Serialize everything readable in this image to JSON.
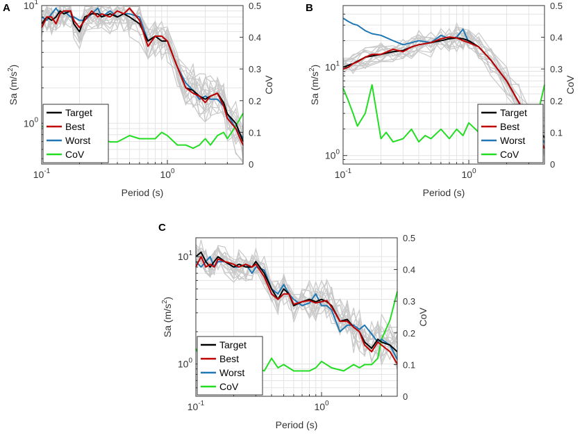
{
  "figure": {
    "x_label": "Period (s)",
    "y_label_left": "Sa (m/s",
    "y_label_left_sup": "2",
    "y_label_left_end": ")",
    "y_label_right": "CoV",
    "x_ticks": [
      {
        "base": "10",
        "exp": "-1",
        "value": 0.1
      },
      {
        "base": "10",
        "exp": "0",
        "value": 1
      }
    ],
    "right_ticks": [
      "0",
      "0.1",
      "0.2",
      "0.3",
      "0.4",
      "0.5"
    ],
    "legend": [
      {
        "label": "Target",
        "color": "#000000"
      },
      {
        "label": "Best",
        "color": "#c00000"
      },
      {
        "label": "Worst",
        "color": "#1f77b4"
      },
      {
        "label": "CoV",
        "color": "#22dd22"
      }
    ],
    "colors": {
      "grid": "#e3e3e3",
      "ensemble": "#c8c8c8",
      "axis": "#333333",
      "text": "#333333"
    }
  },
  "chart_data": [
    {
      "panel": "A",
      "type": "line",
      "xscale": "log",
      "xlim": [
        0.1,
        4.0
      ],
      "yscale": "log",
      "ylim": [
        0.45,
        10.0
      ],
      "y_ticks": [
        {
          "base": "10",
          "exp": "0",
          "value": 1
        },
        {
          "base": "10",
          "exp": "1",
          "value": 10
        }
      ],
      "right_ylim": [
        0,
        0.5
      ],
      "legend_position": "lower-left",
      "series": [
        {
          "name": "Target",
          "x": [
            0.1,
            0.11,
            0.12,
            0.13,
            0.14,
            0.15,
            0.17,
            0.18,
            0.2,
            0.22,
            0.25,
            0.28,
            0.3,
            0.35,
            0.4,
            0.45,
            0.5,
            0.6,
            0.7,
            0.8,
            0.9,
            1.0,
            1.2,
            1.4,
            1.6,
            1.8,
            2.0,
            2.2,
            2.5,
            2.8,
            3.0,
            3.5,
            4.0
          ],
          "values": [
            7,
            8,
            7.5,
            8,
            9,
            8.5,
            9,
            7,
            6,
            8,
            8.5,
            8.5,
            8,
            8.5,
            8,
            8.5,
            8,
            7,
            5,
            5.5,
            5,
            5,
            3,
            2,
            1.9,
            1.7,
            1.6,
            1.7,
            1.8,
            1.5,
            1.2,
            1.0,
            0.7
          ]
        },
        {
          "name": "Best",
          "x": [
            0.1,
            0.11,
            0.12,
            0.13,
            0.14,
            0.15,
            0.17,
            0.18,
            0.2,
            0.22,
            0.25,
            0.28,
            0.3,
            0.35,
            0.4,
            0.45,
            0.5,
            0.6,
            0.7,
            0.8,
            0.9,
            1.0,
            1.2,
            1.4,
            1.6,
            1.8,
            2.0,
            2.2,
            2.5,
            2.8,
            3.0,
            3.5,
            4.0
          ],
          "values": [
            6.5,
            8,
            8,
            7,
            8.5,
            9,
            9,
            7.5,
            6.5,
            7.5,
            9,
            8,
            8.5,
            8,
            9,
            8.5,
            9.5,
            7.5,
            4.5,
            5.5,
            5.5,
            5,
            3,
            2,
            1.8,
            1.7,
            1.5,
            1.7,
            1.8,
            1.4,
            1.1,
            0.9,
            0.65
          ]
        },
        {
          "name": "Worst",
          "x": [
            0.1,
            0.11,
            0.12,
            0.13,
            0.14,
            0.15,
            0.17,
            0.18,
            0.2,
            0.22,
            0.25,
            0.28,
            0.3,
            0.35,
            0.4,
            0.45,
            0.5,
            0.6,
            0.7,
            0.8,
            0.9,
            1.0,
            1.2,
            1.4,
            1.6,
            1.8,
            2.0,
            2.2,
            2.5,
            2.8,
            3.0,
            3.5,
            4.0
          ],
          "values": [
            8,
            7.5,
            8.5,
            9.5,
            8.5,
            9,
            8,
            8,
            7.5,
            7.5,
            8.5,
            9.5,
            8,
            9,
            8,
            8.5,
            8.5,
            8,
            5,
            5.5,
            5.5,
            5,
            3,
            2.2,
            1.9,
            1.6,
            1.7,
            1.6,
            1.6,
            1.4,
            1.2,
            0.9,
            0.75
          ]
        },
        {
          "name": "CoV",
          "axis": "right",
          "x": [
            0.1,
            0.11,
            0.12,
            0.13,
            0.15,
            0.17,
            0.2,
            0.25,
            0.3,
            0.35,
            0.4,
            0.5,
            0.6,
            0.7,
            0.8,
            0.9,
            1.0,
            1.2,
            1.4,
            1.6,
            1.8,
            2.0,
            2.2,
            2.5,
            2.8,
            3.0,
            3.5,
            4.0
          ],
          "values": [
            0.12,
            0.11,
            0.09,
            0.07,
            0.1,
            0.09,
            0.1,
            0.07,
            0.08,
            0.07,
            0.07,
            0.09,
            0.08,
            0.08,
            0.08,
            0.1,
            0.09,
            0.06,
            0.06,
            0.05,
            0.06,
            0.08,
            0.06,
            0.09,
            0.1,
            0.08,
            0.12,
            0.16
          ]
        }
      ]
    },
    {
      "panel": "B",
      "type": "line",
      "xscale": "log",
      "xlim": [
        0.1,
        4.0
      ],
      "yscale": "log",
      "ylim": [
        0.8,
        50.0
      ],
      "y_ticks": [
        {
          "base": "10",
          "exp": "0",
          "value": 1
        },
        {
          "base": "10",
          "exp": "1",
          "value": 10
        }
      ],
      "right_ylim": [
        0,
        0.5
      ],
      "legend_position": "lower-right",
      "series": [
        {
          "name": "Target",
          "x": [
            0.1,
            0.12,
            0.15,
            0.2,
            0.25,
            0.3,
            0.35,
            0.4,
            0.5,
            0.6,
            0.7,
            0.8,
            0.9,
            1.0,
            1.2,
            1.5,
            2.0,
            2.5,
            3.0,
            3.5,
            4.0
          ],
          "values": [
            10,
            11,
            13,
            14,
            15,
            15.5,
            17,
            18,
            19,
            20,
            21,
            21.5,
            21,
            20,
            17,
            12,
            7,
            4,
            2.6,
            2.1,
            1.6
          ]
        },
        {
          "name": "Best",
          "x": [
            0.1,
            0.11,
            0.12,
            0.13,
            0.15,
            0.17,
            0.2,
            0.25,
            0.3,
            0.35,
            0.4,
            0.5,
            0.6,
            0.7,
            0.8,
            0.9,
            1.0,
            1.2,
            1.5,
            2.0,
            2.5,
            3.0,
            3.5,
            4.0
          ],
          "values": [
            9.5,
            10,
            11,
            11.5,
            13,
            14,
            14,
            16,
            15,
            17,
            18,
            19,
            21,
            22,
            21.5,
            20,
            19,
            17,
            12,
            7,
            4,
            2.5,
            1.8,
            1.2
          ]
        },
        {
          "name": "Worst",
          "x": [
            0.1,
            0.11,
            0.12,
            0.13,
            0.15,
            0.17,
            0.2,
            0.25,
            0.3,
            0.35,
            0.4,
            0.5,
            0.6,
            0.7,
            0.8,
            0.9,
            1.0,
            1.2,
            1.5,
            2.0,
            2.5,
            3.0,
            3.5,
            4.0
          ],
          "values": [
            36,
            33,
            31,
            30,
            26,
            24,
            23,
            20,
            18,
            19,
            20,
            19,
            23,
            21,
            22,
            27,
            19,
            17,
            12,
            7,
            4,
            2.5,
            1.9,
            1.4
          ]
        },
        {
          "name": "CoV",
          "axis": "right",
          "x": [
            0.1,
            0.11,
            0.12,
            0.13,
            0.15,
            0.17,
            0.2,
            0.22,
            0.25,
            0.3,
            0.35,
            0.4,
            0.45,
            0.5,
            0.6,
            0.7,
            0.8,
            0.9,
            1.0,
            1.2,
            1.5,
            2.0,
            2.5,
            3.0,
            3.5,
            4.0
          ],
          "values": [
            0.24,
            0.2,
            0.16,
            0.12,
            0.16,
            0.25,
            0.08,
            0.1,
            0.07,
            0.08,
            0.11,
            0.07,
            0.09,
            0.08,
            0.11,
            0.08,
            0.11,
            0.09,
            0.13,
            0.1,
            0.08,
            0.05,
            0.06,
            0.08,
            0.15,
            0.25
          ]
        }
      ]
    },
    {
      "panel": "C",
      "type": "line",
      "xscale": "log",
      "xlim": [
        0.1,
        4.0
      ],
      "yscale": "log",
      "ylim": [
        0.5,
        15.0
      ],
      "y_ticks": [
        {
          "base": "10",
          "exp": "0",
          "value": 1
        },
        {
          "base": "10",
          "exp": "1",
          "value": 10
        }
      ],
      "right_ylim": [
        0,
        0.5
      ],
      "legend_position": "lower-left",
      "series": [
        {
          "name": "Target",
          "x": [
            0.1,
            0.11,
            0.12,
            0.13,
            0.14,
            0.15,
            0.17,
            0.2,
            0.22,
            0.25,
            0.28,
            0.3,
            0.35,
            0.4,
            0.45,
            0.5,
            0.55,
            0.6,
            0.7,
            0.8,
            0.9,
            1.0,
            1.1,
            1.2,
            1.4,
            1.6,
            1.8,
            2.0,
            2.2,
            2.5,
            2.8,
            3.0,
            3.5,
            4.0
          ],
          "values": [
            10,
            11,
            9,
            8,
            9,
            10,
            9,
            8,
            8.5,
            8,
            8,
            9,
            7,
            5,
            4,
            5,
            4.5,
            3.5,
            3.8,
            4,
            3.8,
            4,
            3.8,
            3.5,
            2.5,
            2.6,
            2.2,
            2,
            1.6,
            1.4,
            1.7,
            1.6,
            1.5,
            1.3
          ]
        },
        {
          "name": "Best",
          "x": [
            0.1,
            0.11,
            0.12,
            0.13,
            0.14,
            0.15,
            0.17,
            0.2,
            0.22,
            0.25,
            0.28,
            0.3,
            0.35,
            0.4,
            0.45,
            0.5,
            0.55,
            0.6,
            0.7,
            0.8,
            0.9,
            1.0,
            1.1,
            1.2,
            1.4,
            1.6,
            1.8,
            2.0,
            2.2,
            2.5,
            2.8,
            3.0,
            3.5,
            4.0
          ],
          "values": [
            8,
            10,
            8,
            8.5,
            8,
            9.5,
            9,
            8.5,
            8,
            8.5,
            8,
            8.5,
            6.5,
            4.5,
            4,
            4.5,
            4.5,
            3.6,
            3.8,
            3.9,
            3.7,
            3.8,
            3.9,
            3.4,
            2.5,
            2.5,
            2.2,
            2,
            1.5,
            1.3,
            1.6,
            1.5,
            1.3,
            1.0
          ]
        },
        {
          "name": "Worst",
          "x": [
            0.1,
            0.11,
            0.12,
            0.13,
            0.14,
            0.15,
            0.17,
            0.2,
            0.22,
            0.25,
            0.28,
            0.3,
            0.35,
            0.4,
            0.45,
            0.5,
            0.55,
            0.6,
            0.7,
            0.8,
            0.9,
            1.0,
            1.1,
            1.2,
            1.4,
            1.6,
            1.8,
            2.0,
            2.2,
            2.5,
            2.8,
            3.0,
            3.5,
            4.0
          ],
          "values": [
            9,
            8,
            9,
            10,
            8,
            9,
            9,
            8,
            8,
            8.5,
            7,
            8,
            7.5,
            5,
            4.5,
            5.5,
            4.5,
            4,
            3.5,
            3.7,
            4.5,
            3.5,
            3.5,
            3.2,
            2,
            2.3,
            2.3,
            2.1,
            2.3,
            1.9,
            1.6,
            1.7,
            1.5,
            1.1
          ]
        },
        {
          "name": "CoV",
          "axis": "right",
          "x": [
            0.1,
            0.11,
            0.12,
            0.13,
            0.15,
            0.17,
            0.2,
            0.25,
            0.3,
            0.35,
            0.4,
            0.45,
            0.5,
            0.6,
            0.7,
            0.8,
            0.9,
            1.0,
            1.2,
            1.5,
            1.8,
            2.0,
            2.2,
            2.5,
            2.8,
            3.0,
            3.5,
            4.0
          ],
          "values": [
            0.15,
            0.12,
            0.1,
            0.09,
            0.1,
            0.09,
            0.1,
            0.08,
            0.09,
            0.08,
            0.12,
            0.09,
            0.1,
            0.08,
            0.08,
            0.08,
            0.09,
            0.11,
            0.09,
            0.08,
            0.1,
            0.09,
            0.1,
            0.1,
            0.12,
            0.18,
            0.24,
            0.33
          ]
        }
      ]
    }
  ]
}
